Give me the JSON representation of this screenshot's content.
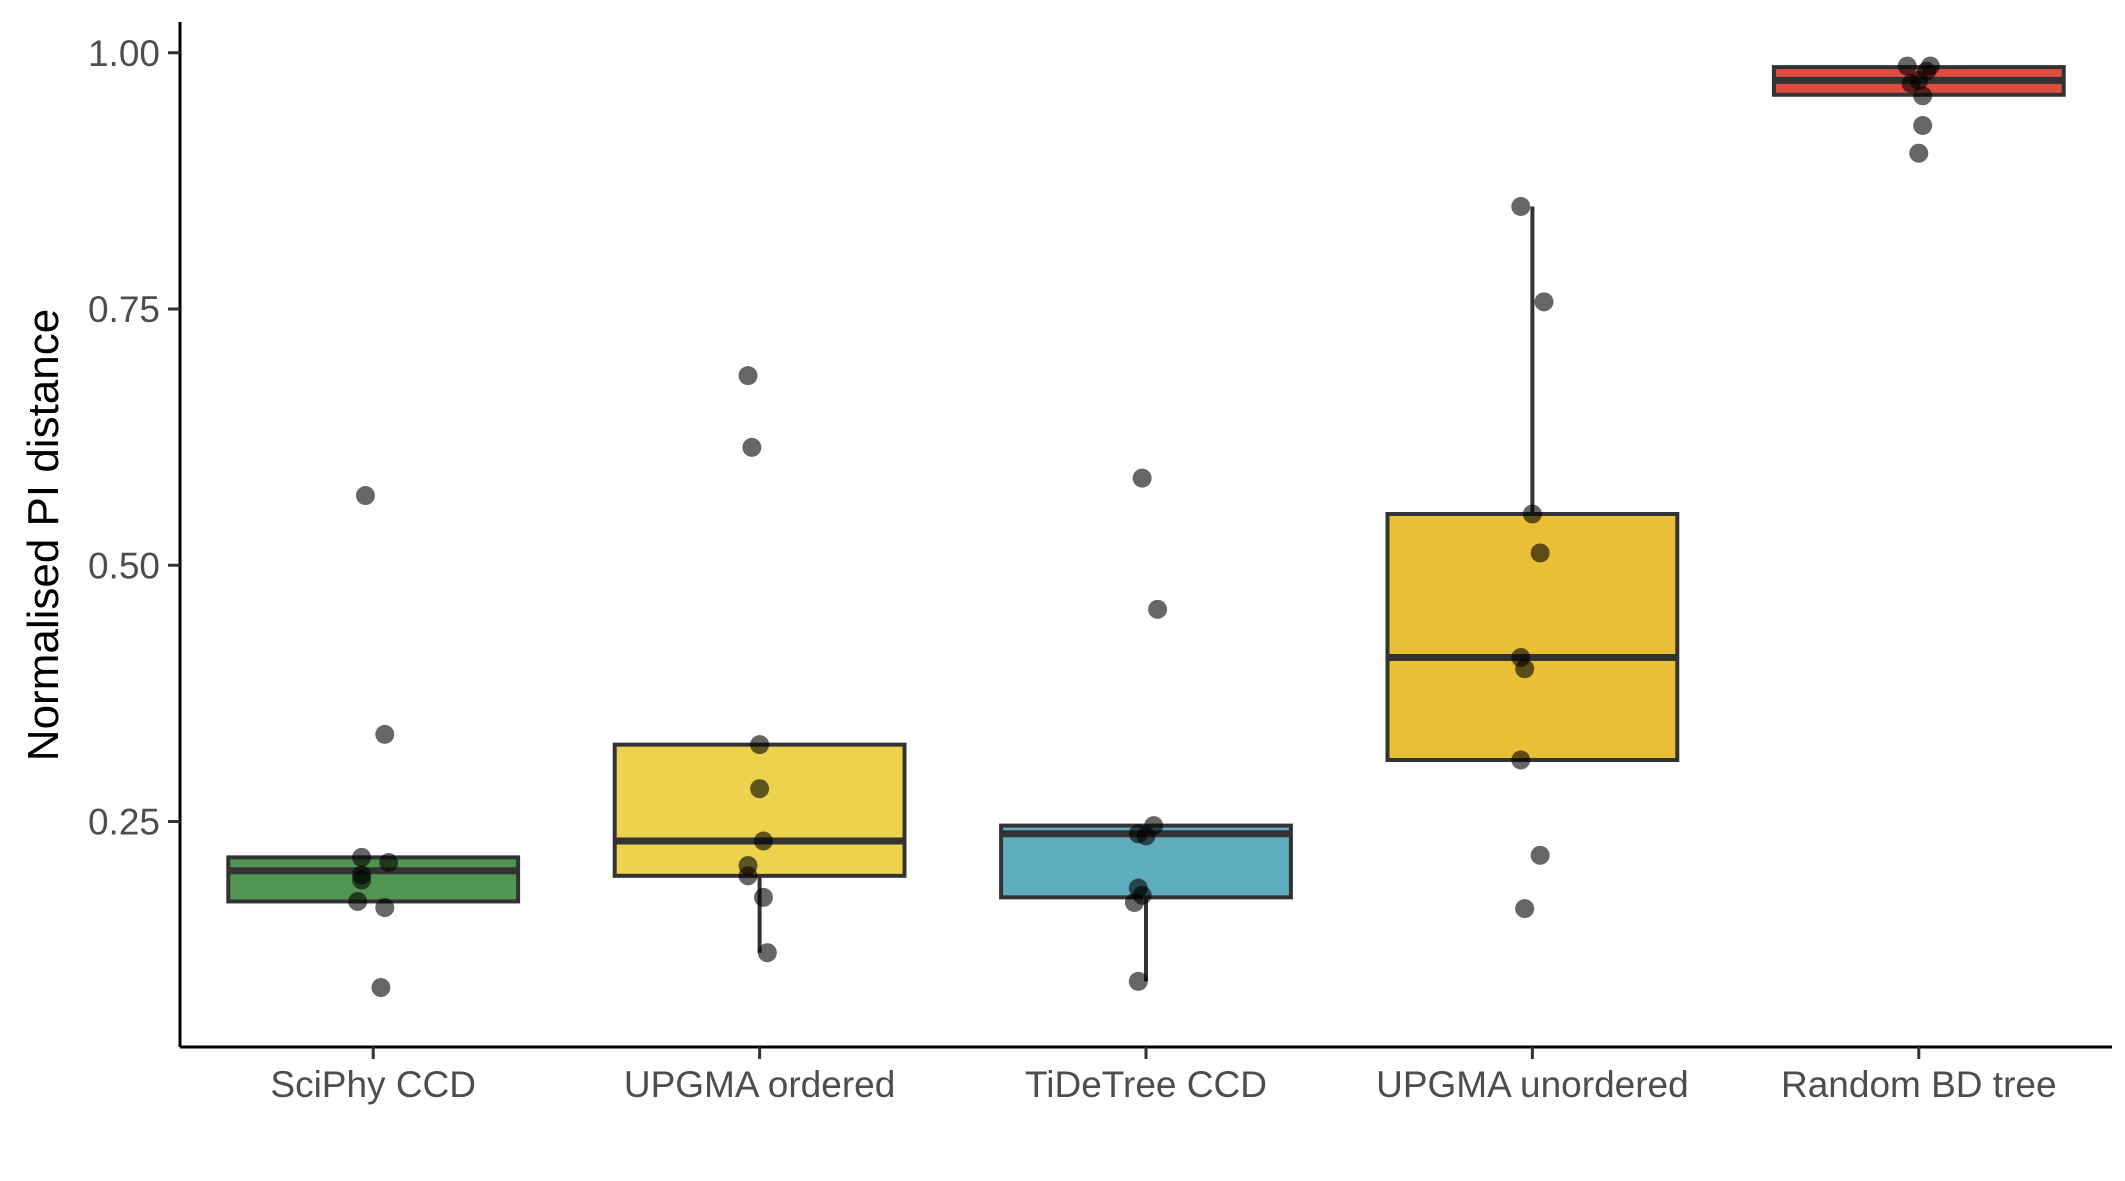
{
  "chart_data": {
    "type": "box",
    "title": "",
    "xlabel": "",
    "ylabel": "Normalised PI distance",
    "ylim": [
      0.03,
      1.03
    ],
    "yticks": [
      0.25,
      0.5,
      0.75,
      1.0
    ],
    "ytick_labels": [
      "0.25",
      "0.50",
      "0.75",
      "1.00"
    ],
    "grid": false,
    "legend": "none",
    "categories": [
      "SciPhy CCD",
      "UPGMA ordered",
      "TiDeTree CCD",
      "UPGMA unordered",
      "Random BD tree"
    ],
    "colors": [
      "#3f8a3f",
      "#eacd3a",
      "#4ea5b9",
      "#e6b81f",
      "#dc3a2c"
    ],
    "boxes": [
      {
        "q1": 0.172,
        "median": 0.202,
        "q3": 0.215,
        "whisker_low": 0.172,
        "whisker_high": 0.215
      },
      {
        "q1": 0.197,
        "median": 0.231,
        "q3": 0.325,
        "whisker_low": 0.122,
        "whisker_high": 0.325
      },
      {
        "q1": 0.176,
        "median": 0.238,
        "q3": 0.246,
        "whisker_low": 0.094,
        "whisker_high": 0.246
      },
      {
        "q1": 0.31,
        "median": 0.41,
        "q3": 0.55,
        "whisker_low": 0.31,
        "whisker_high": 0.85
      },
      {
        "q1": 0.959,
        "median": 0.973,
        "q3": 0.986,
        "whisker_low": 0.959,
        "whisker_high": 0.986
      }
    ],
    "points": [
      [
        {
          "dx": -0.02,
          "y": 0.568
        },
        {
          "dx": 0.03,
          "y": 0.335
        },
        {
          "dx": -0.03,
          "y": 0.215
        },
        {
          "dx": 0.04,
          "y": 0.21
        },
        {
          "dx": -0.03,
          "y": 0.198
        },
        {
          "dx": -0.03,
          "y": 0.193
        },
        {
          "dx": -0.04,
          "y": 0.172
        },
        {
          "dx": 0.03,
          "y": 0.166
        },
        {
          "dx": 0.02,
          "y": 0.088
        }
      ],
      [
        {
          "dx": -0.03,
          "y": 0.685
        },
        {
          "dx": -0.02,
          "y": 0.615
        },
        {
          "dx": 0.0,
          "y": 0.325
        },
        {
          "dx": 0.0,
          "y": 0.282
        },
        {
          "dx": 0.01,
          "y": 0.231
        },
        {
          "dx": -0.03,
          "y": 0.207
        },
        {
          "dx": -0.03,
          "y": 0.197
        },
        {
          "dx": 0.01,
          "y": 0.176
        },
        {
          "dx": 0.02,
          "y": 0.122
        }
      ],
      [
        {
          "dx": -0.01,
          "y": 0.585
        },
        {
          "dx": 0.03,
          "y": 0.457
        },
        {
          "dx": 0.02,
          "y": 0.246
        },
        {
          "dx": -0.02,
          "y": 0.238
        },
        {
          "dx": 0.0,
          "y": 0.236
        },
        {
          "dx": -0.02,
          "y": 0.185
        },
        {
          "dx": -0.01,
          "y": 0.178
        },
        {
          "dx": -0.03,
          "y": 0.171
        },
        {
          "dx": -0.02,
          "y": 0.094
        }
      ],
      [
        {
          "dx": -0.03,
          "y": 0.85
        },
        {
          "dx": 0.03,
          "y": 0.757
        },
        {
          "dx": 0.0,
          "y": 0.55
        },
        {
          "dx": 0.02,
          "y": 0.512
        },
        {
          "dx": -0.03,
          "y": 0.41
        },
        {
          "dx": -0.02,
          "y": 0.399
        },
        {
          "dx": -0.03,
          "y": 0.31
        },
        {
          "dx": 0.02,
          "y": 0.217
        },
        {
          "dx": -0.02,
          "y": 0.165
        }
      ],
      [
        {
          "dx": -0.03,
          "y": 0.987
        },
        {
          "dx": 0.03,
          "y": 0.987
        },
        {
          "dx": 0.02,
          "y": 0.982
        },
        {
          "dx": 0.0,
          "y": 0.973
        },
        {
          "dx": -0.02,
          "y": 0.97
        },
        {
          "dx": 0.01,
          "y": 0.958
        },
        {
          "dx": 0.01,
          "y": 0.929
        },
        {
          "dx": 0.0,
          "y": 0.902
        }
      ]
    ]
  }
}
